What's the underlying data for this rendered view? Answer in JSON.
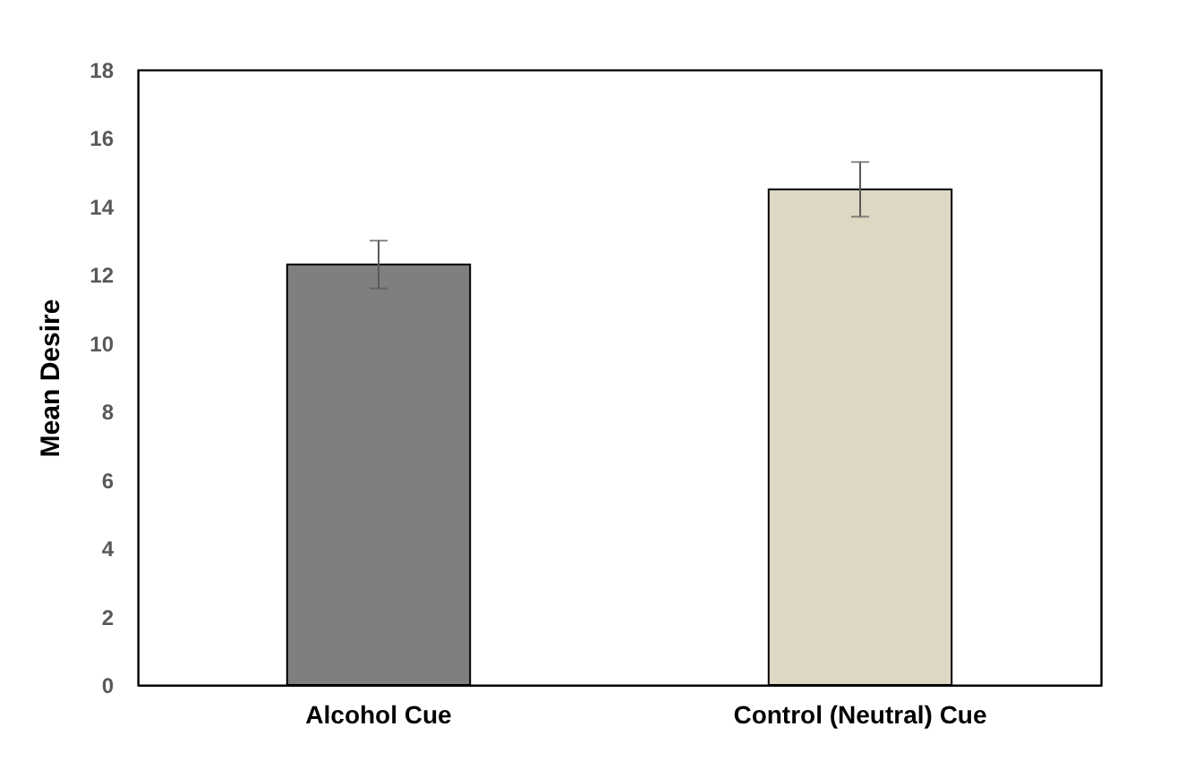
{
  "chart_data": {
    "type": "bar",
    "ylabel": "Mean Desire",
    "categories": [
      "Alcohol Cue",
      "Control (Neutral) Cue"
    ],
    "values": [
      12.3,
      14.5
    ],
    "colors": [
      "#7f7f7f",
      "#ddd8c3"
    ],
    "errors": [
      0.7,
      0.8
    ],
    "ylim": [
      0,
      18
    ],
    "yticks": [
      0,
      2,
      4,
      6,
      8,
      10,
      12,
      14,
      16,
      18
    ],
    "grid": false
  }
}
